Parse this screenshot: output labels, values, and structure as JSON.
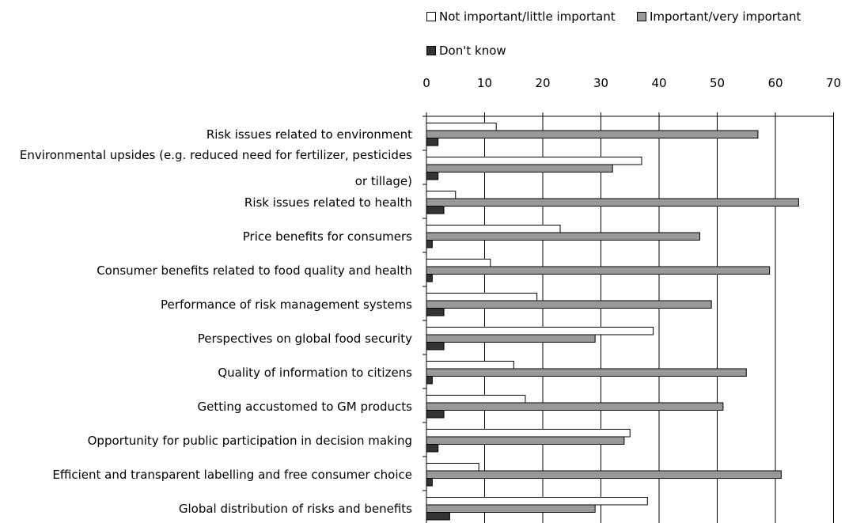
{
  "chart_data": {
    "type": "bar",
    "orientation": "horizontal",
    "categories": [
      [
        "Risk issues related to environment"
      ],
      [
        "Environmental upsides (e.g. reduced need for fertilizer, pesticides",
        "or tillage)"
      ],
      [
        "Risk issues related to health"
      ],
      [
        "Price benefits for consumers"
      ],
      [
        "Consumer benefits related to food quality and health"
      ],
      [
        "Performance of risk management systems"
      ],
      [
        "Perspectives on global food security"
      ],
      [
        "Quality of information to citizens"
      ],
      [
        "Getting accustomed to GM products"
      ],
      [
        "Opportunity for public participation in decision making"
      ],
      [
        "Efficient and transparent labelling and free consumer choice"
      ],
      [
        "Global distribution of risks and benefits"
      ]
    ],
    "series": [
      {
        "name": "Not important/little important",
        "color": "#ffffff",
        "values": [
          12,
          37,
          5,
          23,
          11,
          19,
          39,
          15,
          17,
          35,
          9,
          38
        ]
      },
      {
        "name": "Important/very important",
        "color": "#999999",
        "values": [
          57,
          32,
          64,
          47,
          59,
          49,
          29,
          55,
          51,
          34,
          61,
          29
        ]
      },
      {
        "name": "Don't know",
        "color": "#333333",
        "values": [
          2,
          2,
          3,
          1,
          1,
          3,
          3,
          1,
          3,
          2,
          1,
          4
        ]
      }
    ],
    "xlim": [
      0,
      70
    ],
    "xticks": [
      "0",
      "10",
      "20",
      "30",
      "40",
      "50",
      "60",
      "70"
    ],
    "x_axis_position": "top",
    "grid": true,
    "legend_position": "top"
  }
}
